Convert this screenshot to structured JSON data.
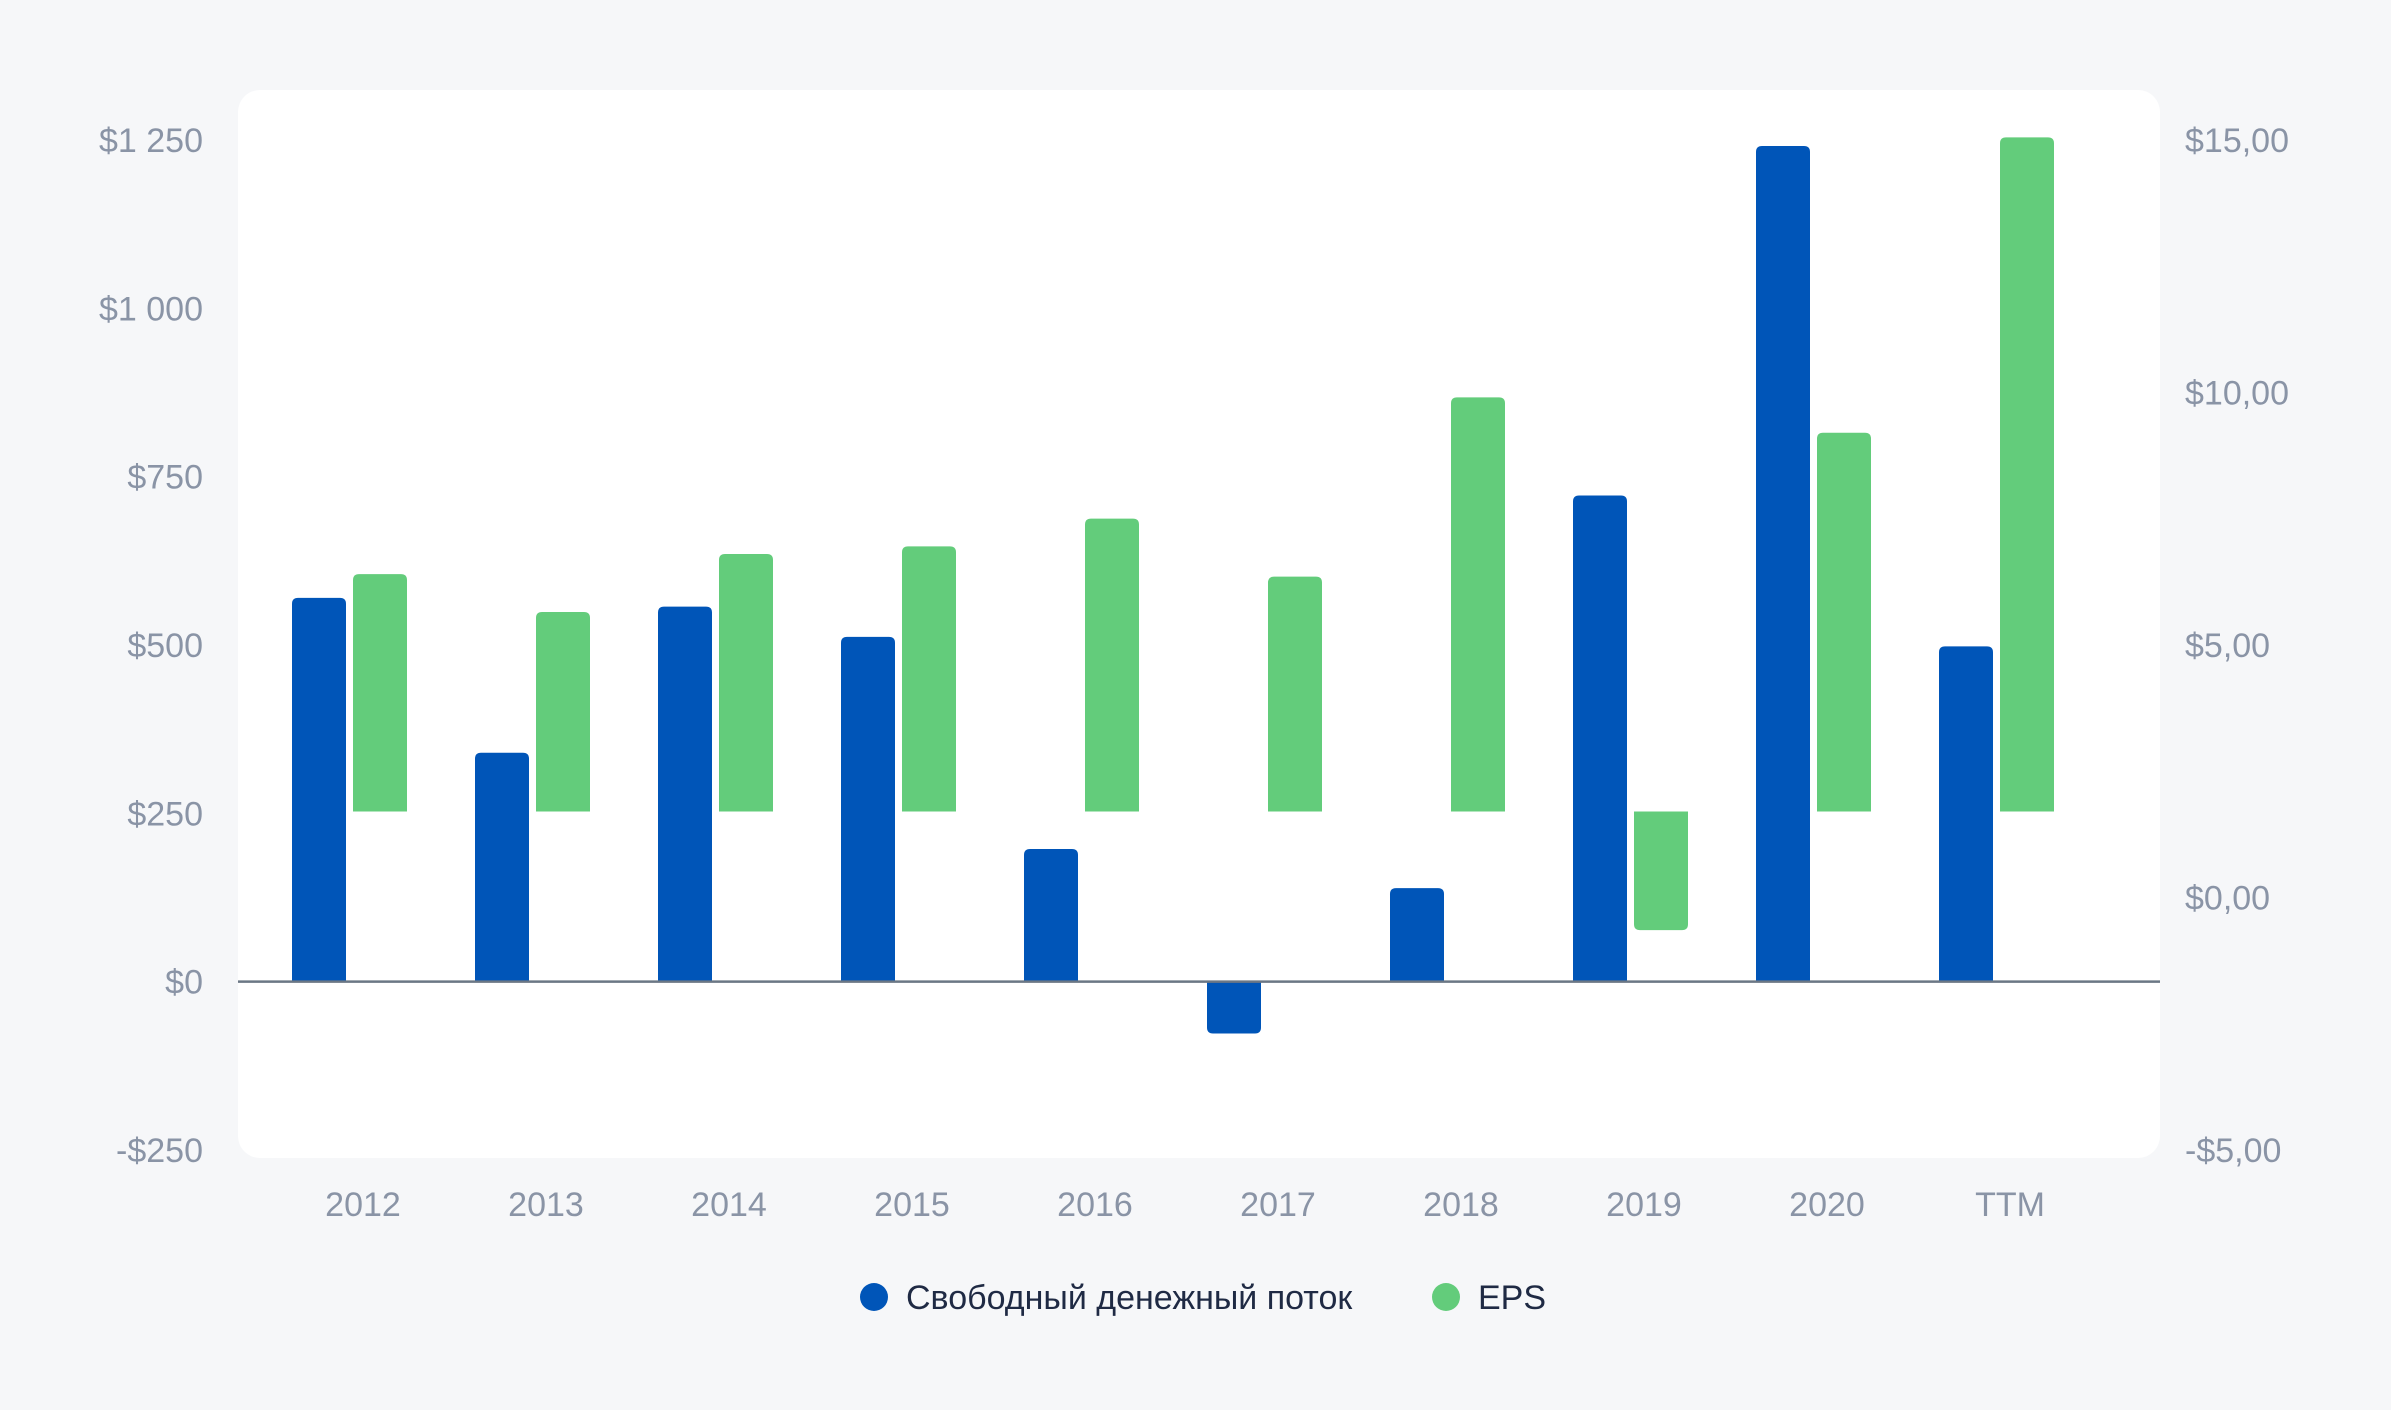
{
  "chart_data": {
    "type": "bar",
    "categories": [
      "2012",
      "2013",
      "2014",
      "2015",
      "2016",
      "2017",
      "2018",
      "2019",
      "2020",
      "TTM"
    ],
    "series": [
      {
        "name": "Свободный денежный поток",
        "axis": "left",
        "color": "#0055b8",
        "values": [
          570,
          340,
          557,
          512,
          197,
          -77,
          139,
          722,
          1241,
          498
        ]
      },
      {
        "name": "EPS",
        "axis": "right",
        "color": "#63cc7b",
        "values": [
          4.7,
          3.95,
          5.1,
          5.25,
          5.8,
          4.65,
          8.2,
          -2.35,
          7.5,
          13.35
        ]
      }
    ],
    "left_axis": {
      "ylim": [
        -250,
        1250
      ],
      "ticks": [
        -250,
        0,
        250,
        500,
        750,
        1000,
        1250
      ],
      "tick_labels": [
        "-$250",
        "$0",
        "$250",
        "$500",
        "$750",
        "$1 000",
        "$1 250"
      ]
    },
    "right_axis": {
      "ylim": [
        -5,
        15
      ],
      "ticks": [
        -5,
        0,
        5,
        10,
        15
      ],
      "tick_labels": [
        "-$5,00",
        "$0,00",
        "$5,00",
        "$10,00",
        "$15,00"
      ]
    },
    "grid": false,
    "legend": "bottom-center",
    "colors": {
      "background": "#f6f7f9",
      "plot_background": "#ffffff",
      "zero_line": "#6b7785",
      "tick_text": "#8a94a6",
      "legend_text": "#1f2a44"
    }
  }
}
